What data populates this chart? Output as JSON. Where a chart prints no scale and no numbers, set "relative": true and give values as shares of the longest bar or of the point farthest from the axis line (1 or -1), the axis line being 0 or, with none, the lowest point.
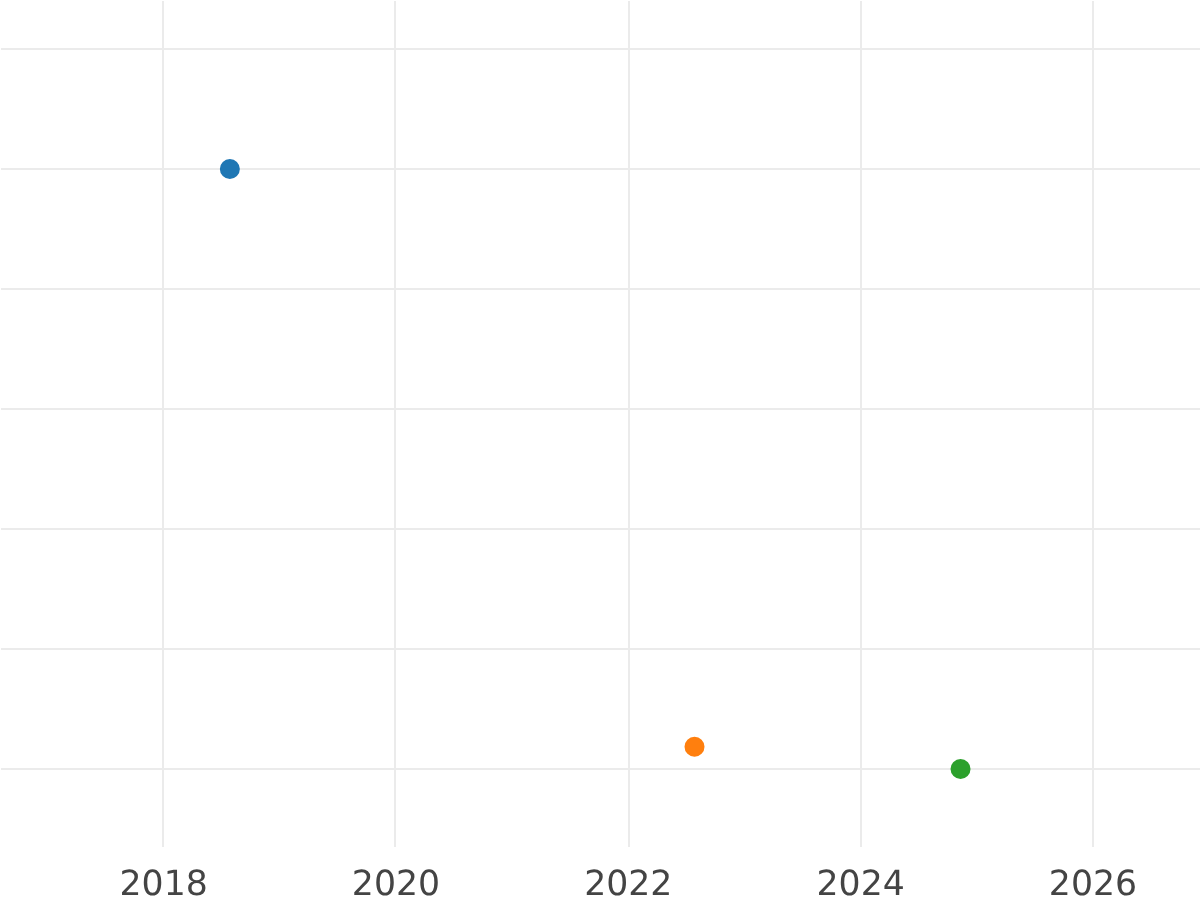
{
  "chart_data": {
    "type": "scatter",
    "x": [
      2018.57,
      2022.57,
      2024.86
    ],
    "values": [
      1,
      0.037,
      0
    ],
    "colors": [
      "#1f77b4",
      "#ff7f0e",
      "#2ca02c"
    ],
    "relative": true,
    "xlim": [
      2016.6,
      2026.93
    ],
    "xticks": [
      2018,
      2020,
      2022,
      2024,
      2026
    ],
    "grid": true,
    "marker": "circle",
    "tick_labels": "x"
  }
}
